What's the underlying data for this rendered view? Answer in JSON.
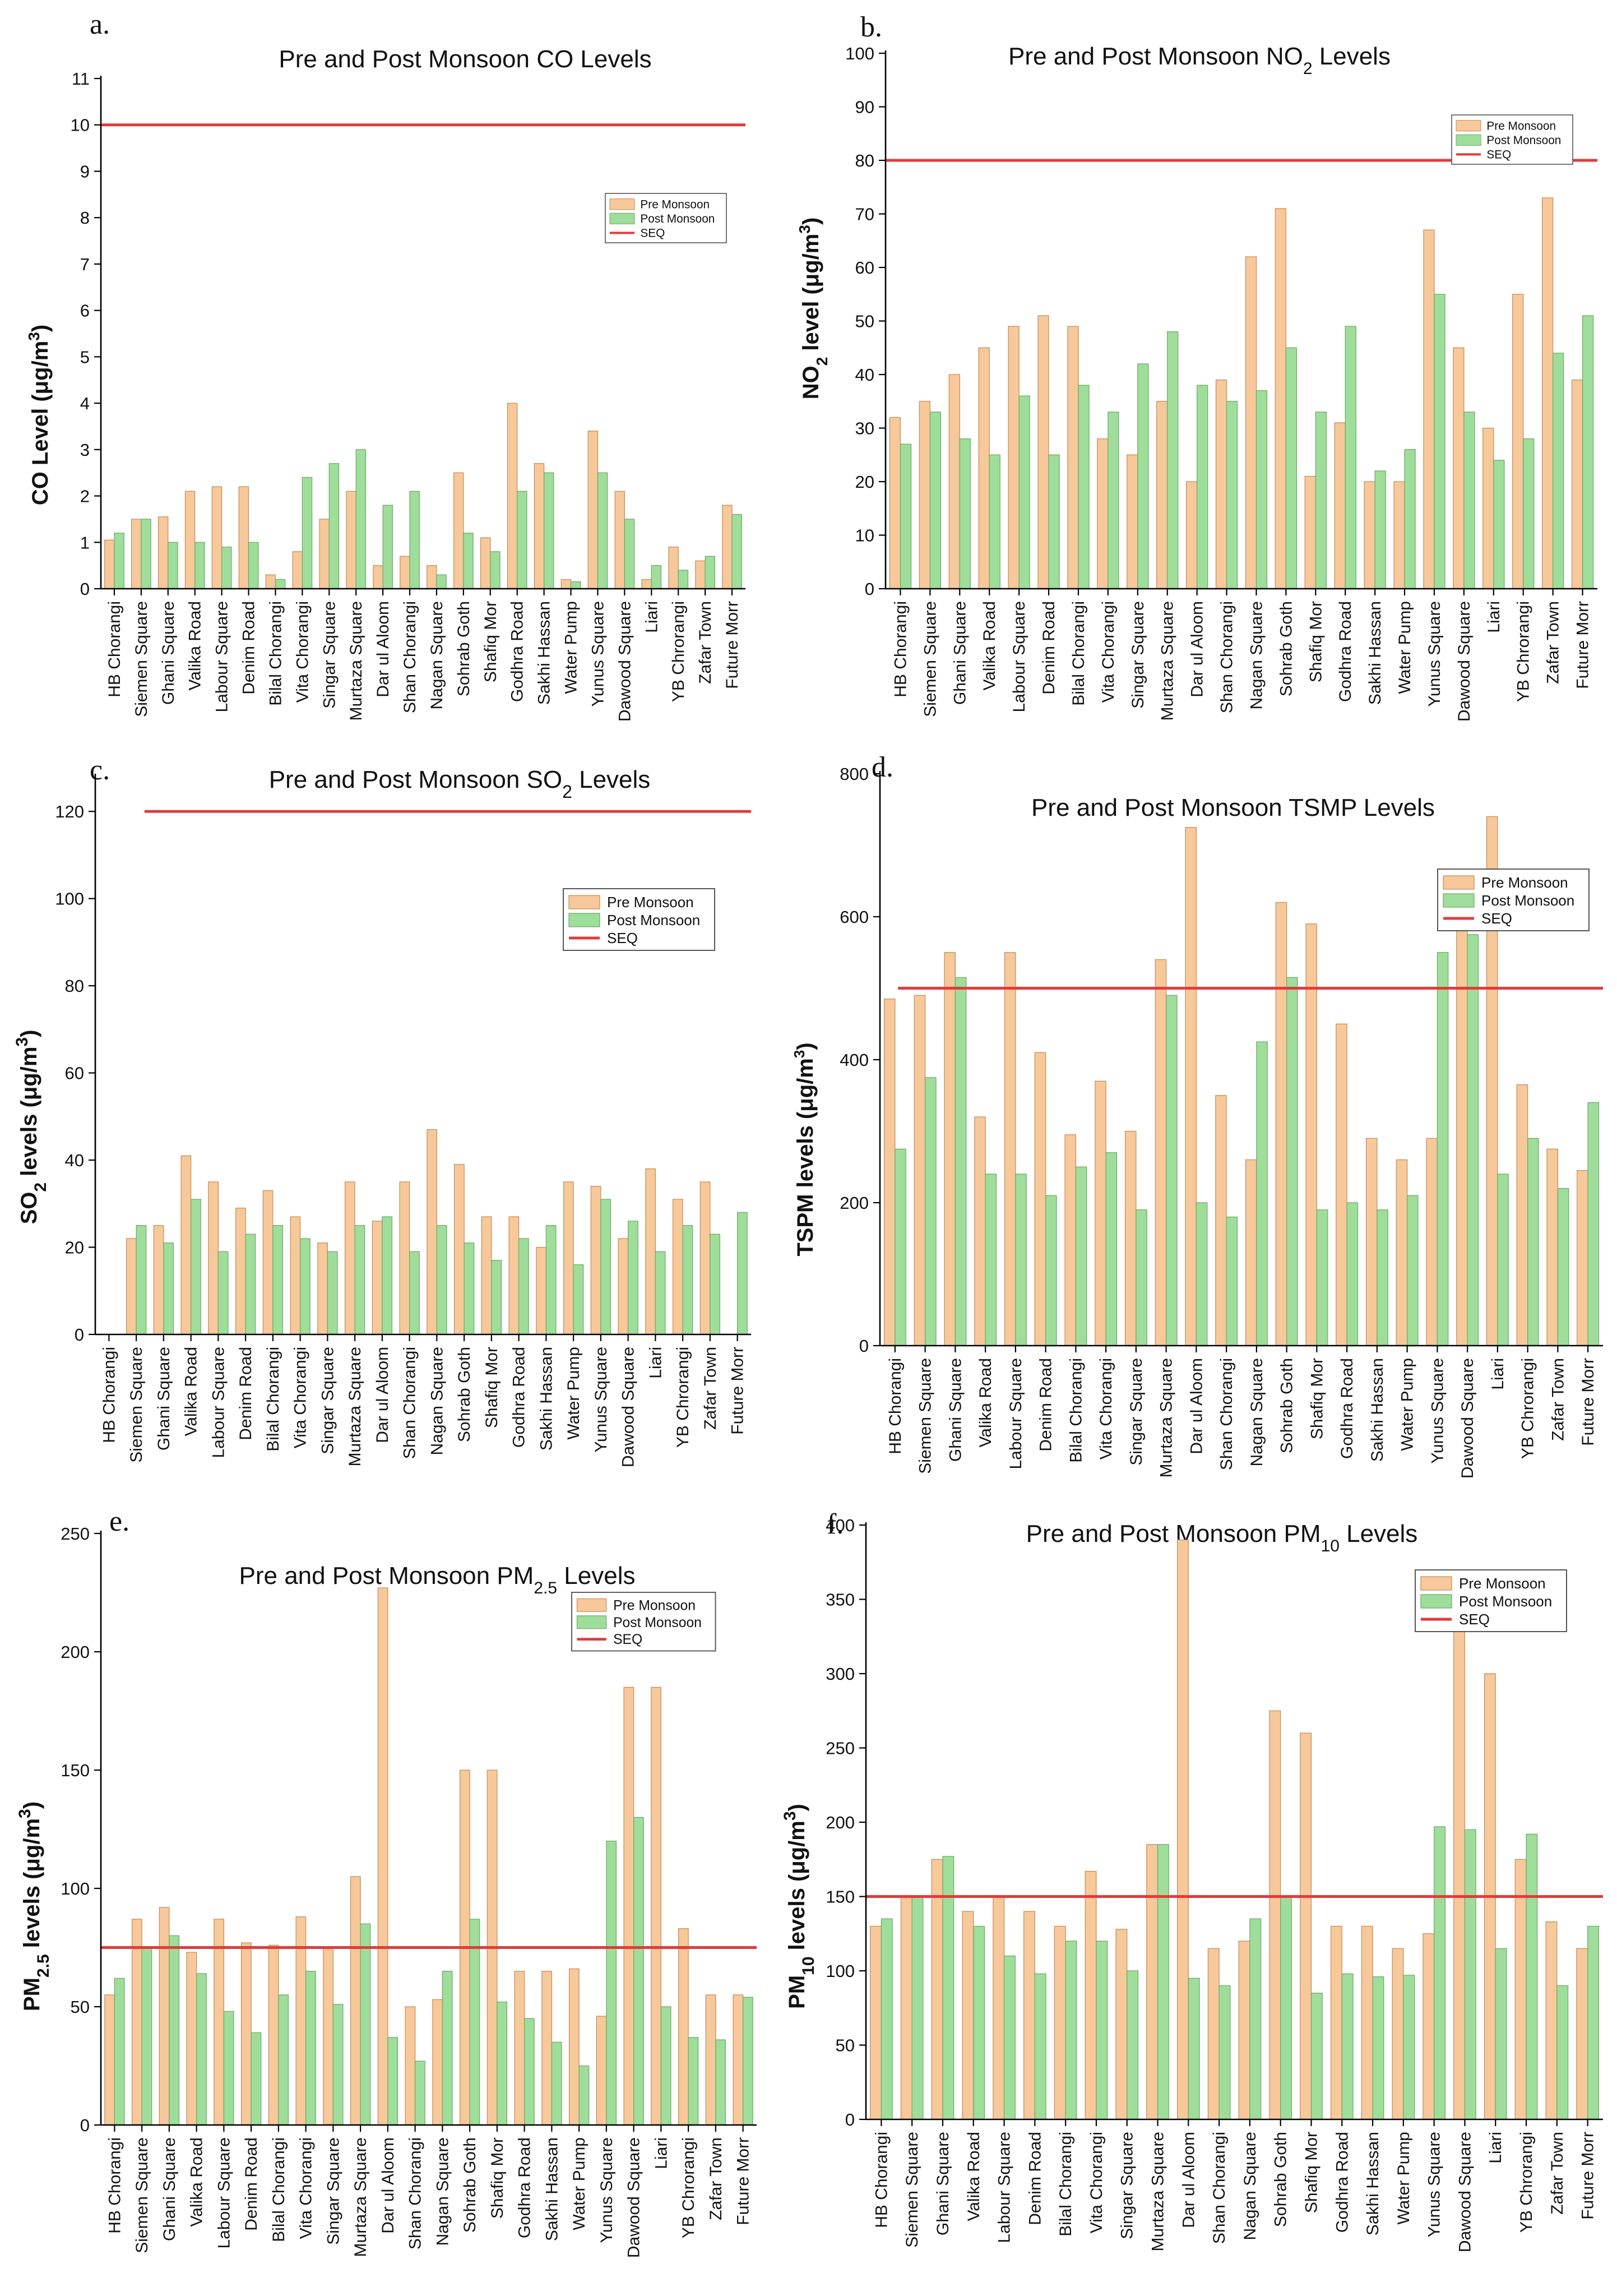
{
  "categories": [
    "HB Chorangi",
    "Siemen Square",
    "Ghani Square",
    "Valika Road",
    "Labour Square",
    "Denim Road",
    "Bilal Chorangi",
    "Vita Chorangi",
    "Singar Square",
    "Murtaza Square",
    "Dar ul Aloom",
    "Shan Chorangi",
    "Nagan Square",
    "Sohrab Goth",
    "Shafiq Mor",
    "Godhra Road",
    "Sakhi Hassan",
    "Water Pump",
    "Yunus Square",
    "Dawood Square",
    "Liari",
    "YB Chrorangi",
    "Zafar Town",
    "Future Morr"
  ],
  "colors": {
    "pre": "#f6c89a",
    "post": "#9fdd9a",
    "seq": "#e23b3b"
  },
  "chart_data": [
    {
      "id": "co",
      "panel": "a.",
      "type": "bar",
      "title": "Pre and Post Monsoon CO Levels",
      "title_main": "Pre and Post Monsoon CO Levels",
      "title_sub": "",
      "title_tail": "",
      "ylabel_main": "CO Level (μg/m",
      "ylabel_sup": "3",
      "ylabel_tail": ")",
      "ylim": [
        0,
        11
      ],
      "yticks": [
        0,
        1,
        2,
        3,
        4,
        5,
        6,
        7,
        8,
        9,
        10,
        11
      ],
      "legend": [
        "Pre Monsoon",
        "Post Monsoon",
        "SEQ"
      ],
      "legend_position": "right",
      "seq": 10,
      "series": [
        {
          "name": "Pre Monsoon",
          "values": [
            1.05,
            1.5,
            1.55,
            2.1,
            2.2,
            2.2,
            0.3,
            0.8,
            1.5,
            2.1,
            0.5,
            0.7,
            0.5,
            2.5,
            1.1,
            4.0,
            2.7,
            0.2,
            3.4,
            2.1,
            0.2,
            0.9,
            0.6,
            1.8
          ]
        },
        {
          "name": "Post Monsoon",
          "values": [
            1.2,
            1.5,
            1.0,
            1.0,
            0.9,
            1.0,
            0.2,
            2.4,
            2.7,
            3.0,
            1.8,
            2.1,
            0.3,
            1.2,
            0.8,
            2.1,
            2.5,
            0.15,
            2.5,
            1.5,
            0.5,
            0.4,
            0.7,
            1.6
          ]
        }
      ]
    },
    {
      "id": "no2",
      "panel": "b.",
      "type": "bar",
      "title": "Pre and Post Monsoon NO2 Levels",
      "title_main": "Pre and Post Monsoon NO",
      "title_sub": "2",
      "title_tail": " Levels",
      "ylabel_main": "NO",
      "ylabel_sub": "2",
      "ylabel_rest": " level (μg/m",
      "ylabel_sup": "3",
      "ylabel_tail": ")",
      "ylim": [
        0,
        100
      ],
      "yticks": [
        0,
        10,
        20,
        30,
        40,
        50,
        60,
        70,
        80,
        90,
        100
      ],
      "legend": [
        "Pre Monsoon",
        "Post Monsoon",
        "SEQ"
      ],
      "legend_position": "top-right",
      "seq": 80,
      "series": [
        {
          "name": "Pre Monsoon",
          "values": [
            32,
            35,
            40,
            45,
            49,
            51,
            49,
            28,
            25,
            35,
            20,
            39,
            62,
            71,
            21,
            31,
            20,
            20,
            67,
            45,
            30,
            55,
            73,
            39
          ]
        },
        {
          "name": "Post Monsoon",
          "values": [
            27,
            33,
            28,
            25,
            36,
            25,
            38,
            33,
            42,
            48,
            38,
            35,
            37,
            45,
            33,
            49,
            22,
            26,
            55,
            33,
            24,
            28,
            44,
            51
          ]
        }
      ]
    },
    {
      "id": "so2",
      "panel": "c.",
      "type": "bar",
      "title": "Pre and Post Monsoon SO2 Levels",
      "title_main": "Pre and Post Monsoon SO",
      "title_sub": "2",
      "title_tail": " Levels",
      "ylabel_main": "SO",
      "ylabel_sub": "2",
      "ylabel_rest": " levels (μg/m",
      "ylabel_sup": "3",
      "ylabel_tail": ")",
      "ylim": [
        0,
        128
      ],
      "yticks": [
        0,
        20,
        40,
        60,
        80,
        100,
        120
      ],
      "legend": [
        "Pre Monsoon",
        "Post Monsoon",
        "SEQ"
      ],
      "legend_position": "right",
      "seq": 120,
      "series": [
        {
          "name": "Pre Monsoon",
          "values": [
            0,
            22,
            25,
            41,
            35,
            29,
            33,
            27,
            21,
            35,
            26,
            35,
            47,
            39,
            27,
            27,
            20,
            35,
            34,
            22,
            38,
            31,
            35,
            0
          ]
        },
        {
          "name": "Post Monsoon",
          "values": [
            0,
            25,
            21,
            31,
            19,
            23,
            25,
            22,
            19,
            25,
            27,
            19,
            25,
            21,
            17,
            22,
            25,
            16,
            31,
            26,
            19,
            25,
            23,
            28
          ]
        }
      ]
    },
    {
      "id": "tspm",
      "panel": "d.",
      "type": "bar",
      "title": "Pre and Post Monsoon TSMP Levels",
      "title_main": "Pre and Post Monsoon TSMP Levels",
      "title_sub": "",
      "title_tail": "",
      "ylabel_main": "TSPM levels (μg/m",
      "ylabel_sup": "3",
      "ylabel_tail": ")",
      "ylim": [
        0,
        800
      ],
      "yticks": [
        0,
        200,
        400,
        600,
        800
      ],
      "legend": [
        "Pre Monsoon",
        "Post Monsoon",
        "SEQ"
      ],
      "legend_position": "top-right",
      "seq": 500,
      "series": [
        {
          "name": "Pre Monsoon",
          "values": [
            485,
            490,
            550,
            320,
            550,
            410,
            295,
            370,
            300,
            540,
            725,
            350,
            260,
            620,
            590,
            450,
            290,
            260,
            290,
            640,
            740,
            365,
            275,
            245
          ]
        },
        {
          "name": "Post Monsoon",
          "values": [
            275,
            375,
            515,
            240,
            240,
            210,
            250,
            270,
            190,
            490,
            200,
            180,
            425,
            515,
            190,
            200,
            190,
            210,
            550,
            575,
            240,
            290,
            220,
            340
          ]
        }
      ]
    },
    {
      "id": "pm25",
      "panel": "e.",
      "type": "bar",
      "title": "Pre and Post Monsoon PM2.5 Levels",
      "title_main": "Pre and Post Monsoon PM",
      "title_sub": "2.5",
      "title_tail": " Levels",
      "ylabel_main": "PM",
      "ylabel_sub": "2.5",
      "ylabel_rest": " levels (μg/m",
      "ylabel_sup": "3",
      "ylabel_tail": ")",
      "ylim": [
        0,
        250
      ],
      "yticks": [
        0,
        50,
        100,
        150,
        200,
        250
      ],
      "legend": [
        "Pre Monsoon",
        "Post Monsoon",
        "SEQ"
      ],
      "legend_position": "top-right",
      "seq": 75,
      "series": [
        {
          "name": "Pre Monsoon",
          "values": [
            55,
            87,
            92,
            73,
            87,
            77,
            76,
            88,
            75,
            105,
            227,
            50,
            53,
            150,
            150,
            65,
            65,
            66,
            46,
            185,
            185,
            83,
            55,
            55
          ]
        },
        {
          "name": "Post Monsoon",
          "values": [
            62,
            75,
            80,
            64,
            48,
            39,
            55,
            65,
            51,
            85,
            37,
            27,
            65,
            87,
            52,
            45,
            35,
            25,
            120,
            130,
            50,
            37,
            36,
            54
          ]
        }
      ]
    },
    {
      "id": "pm10",
      "panel": "f.",
      "type": "bar",
      "title": "Pre and Post Monsoon PM10 Levels",
      "title_main": "Pre and Post Monsoon PM",
      "title_sub": "10",
      "title_tail": " Levels",
      "ylabel_main": "PM",
      "ylabel_sub": "10",
      "ylabel_rest": " levels (μg/m",
      "ylabel_sup": "3",
      "ylabel_tail": ")",
      "ylim": [
        0,
        400
      ],
      "yticks": [
        0,
        50,
        100,
        150,
        200,
        250,
        300,
        350,
        400
      ],
      "legend": [
        "Pre Monsoon",
        "Post Monsoon",
        "SEQ"
      ],
      "legend_position": "top-right",
      "seq": 150,
      "series": [
        {
          "name": "Pre Monsoon",
          "values": [
            130,
            150,
            175,
            140,
            150,
            140,
            130,
            167,
            128,
            185,
            390,
            115,
            120,
            275,
            260,
            130,
            130,
            115,
            125,
            360,
            300,
            175,
            133,
            115
          ]
        },
        {
          "name": "Post Monsoon",
          "values": [
            135,
            150,
            177,
            130,
            110,
            98,
            120,
            120,
            100,
            185,
            95,
            90,
            135,
            150,
            85,
            98,
            96,
            97,
            197,
            195,
            115,
            192,
            90,
            130
          ]
        }
      ]
    }
  ]
}
